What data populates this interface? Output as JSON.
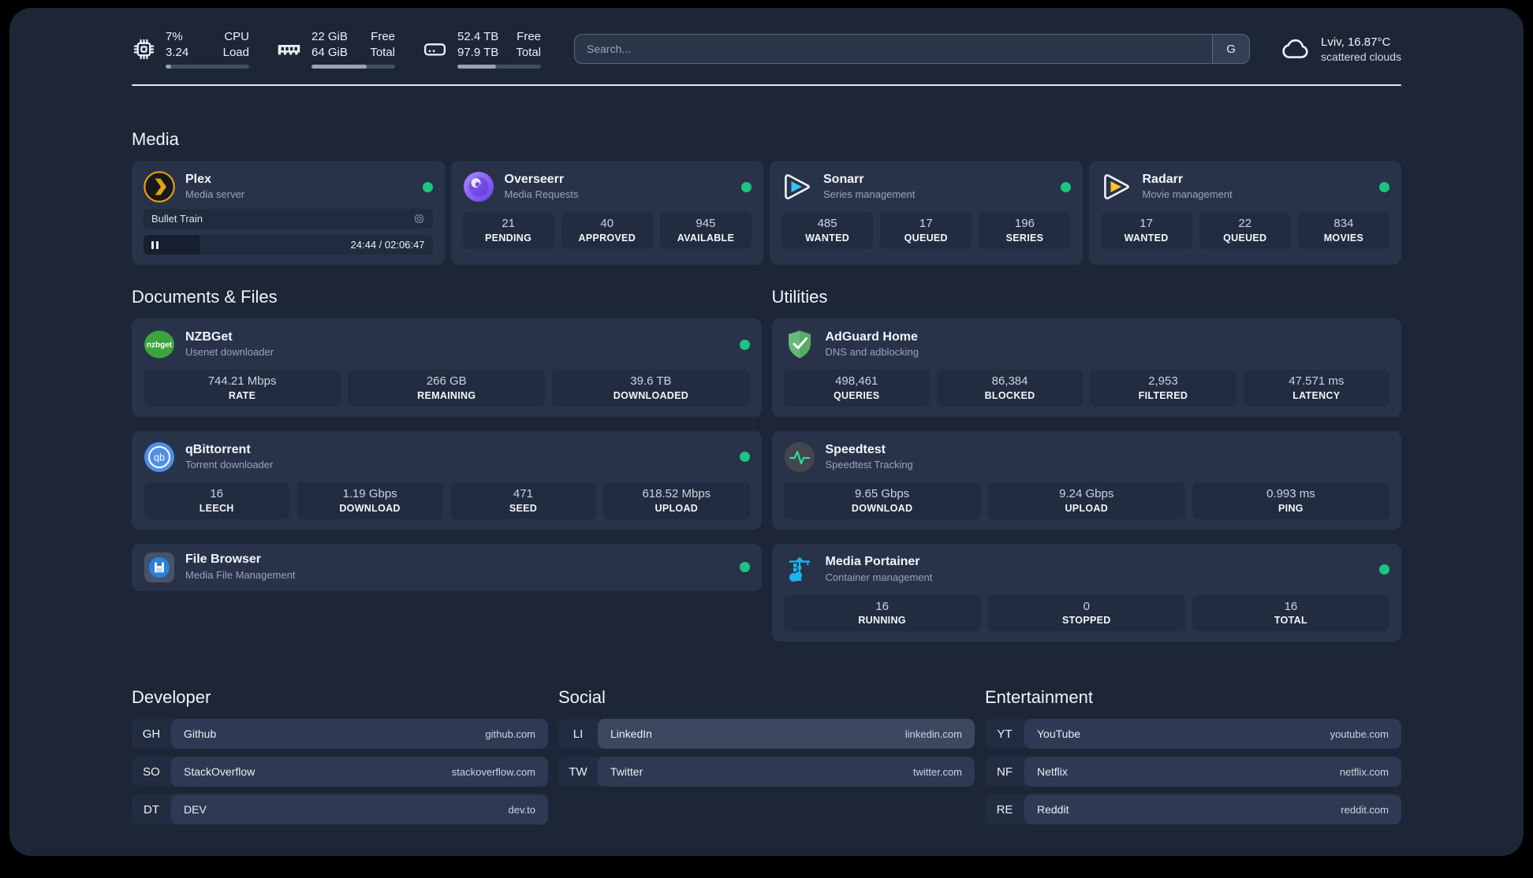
{
  "colors": {
    "page_bg": "#000000",
    "panel_bg": "#1d2636",
    "card_bg": "#28334a",
    "tile_bg": "#212c40",
    "status_online": "#1cc57e",
    "plex_orange": "#e5a00d",
    "sonarr_blue": "#32c5f4",
    "radarr_yellow": "#ffc230",
    "portainer_blue": "#16b8f0",
    "adguard_green": "#68b978",
    "speedtest_green": "#2fd8a2"
  },
  "topbar": {
    "cpu": {
      "icon": "cpu-chip-icon",
      "value_lines": [
        "7%",
        "3.24"
      ],
      "label_lines": [
        "CPU",
        "Load"
      ],
      "progress_pct": 7
    },
    "memory": {
      "icon": "ram-icon",
      "value_lines": [
        "22 GiB",
        "64 GiB"
      ],
      "label_lines": [
        "Free",
        "Total"
      ],
      "progress_pct": 66
    },
    "disk": {
      "icon": "hard-drive-icon",
      "value_lines": [
        "52.4 TB",
        "97.9 TB"
      ],
      "label_lines": [
        "Free",
        "Total"
      ],
      "progress_pct": 46
    },
    "search": {
      "placeholder": "Search...",
      "engine_button": "G"
    },
    "weather": {
      "icon": "cloud-icon",
      "location_temperature": "Lviv, 16.87°C",
      "condition": "scattered clouds"
    }
  },
  "sections": {
    "media": {
      "title": "Media",
      "plex": {
        "icon": "plex-logo",
        "title": "Plex",
        "subtitle": "Media server",
        "online": true,
        "now_playing": {
          "title": "Bullet Train",
          "time": "24:44 / 02:06:47",
          "progress_pct": 19.5
        }
      },
      "overseerr": {
        "icon": "overseerr-logo",
        "title": "Overseerr",
        "subtitle": "Media Requests",
        "online": true,
        "stats": [
          {
            "value": "21",
            "label": "PENDING"
          },
          {
            "value": "40",
            "label": "APPROVED"
          },
          {
            "value": "945",
            "label": "AVAILABLE"
          }
        ]
      },
      "sonarr": {
        "icon": "sonarr-logo",
        "title": "Sonarr",
        "subtitle": "Series management",
        "online": true,
        "stats": [
          {
            "value": "485",
            "label": "WANTED"
          },
          {
            "value": "17",
            "label": "QUEUED"
          },
          {
            "value": "196",
            "label": "SERIES"
          }
        ]
      },
      "radarr": {
        "icon": "radarr-logo",
        "title": "Radarr",
        "subtitle": "Movie management",
        "online": true,
        "stats": [
          {
            "value": "17",
            "label": "WANTED"
          },
          {
            "value": "22",
            "label": "QUEUED"
          },
          {
            "value": "834",
            "label": "MOVIES"
          }
        ]
      }
    },
    "documents": {
      "title": "Documents & Files",
      "nzbget": {
        "icon": "nzbget-logo",
        "title": "NZBGet",
        "subtitle": "Usenet downloader",
        "online": true,
        "stats": [
          {
            "value": "744.21 Mbps",
            "label": "RATE"
          },
          {
            "value": "266 GB",
            "label": "REMAINING"
          },
          {
            "value": "39.6 TB",
            "label": "DOWNLOADED"
          }
        ]
      },
      "qbittorrent": {
        "icon": "qbittorrent-logo",
        "title": "qBittorrent",
        "subtitle": "Torrent downloader",
        "online": true,
        "stats": [
          {
            "value": "16",
            "label": "LEECH"
          },
          {
            "value": "1.19 Gbps",
            "label": "DOWNLOAD"
          },
          {
            "value": "471",
            "label": "SEED"
          },
          {
            "value": "618.52 Mbps",
            "label": "UPLOAD"
          }
        ]
      },
      "filebrowser": {
        "icon": "filebrowser-logo",
        "title": "File Browser",
        "subtitle": "Media File Management",
        "online": true
      }
    },
    "utilities": {
      "title": "Utilities",
      "adguard": {
        "icon": "adguard-logo",
        "title": "AdGuard Home",
        "subtitle": "DNS and adblocking",
        "stats": [
          {
            "value": "498,461",
            "label": "QUERIES"
          },
          {
            "value": "86,384",
            "label": "BLOCKED"
          },
          {
            "value": "2,953",
            "label": "FILTERED"
          },
          {
            "value": "47.571 ms",
            "label": "LATENCY"
          }
        ]
      },
      "speedtest": {
        "icon": "speedtest-logo",
        "title": "Speedtest",
        "subtitle": "Speedtest Tracking",
        "stats": [
          {
            "value": "9.65 Gbps",
            "label": "DOWNLOAD"
          },
          {
            "value": "9.24 Gbps",
            "label": "UPLOAD"
          },
          {
            "value": "0.993 ms",
            "label": "PING"
          }
        ]
      },
      "portainer": {
        "icon": "portainer-logo",
        "title": "Media Portainer",
        "subtitle": "Container management",
        "online": true,
        "stats": [
          {
            "value": "16",
            "label": "RUNNING"
          },
          {
            "value": "0",
            "label": "STOPPED"
          },
          {
            "value": "16",
            "label": "TOTAL"
          }
        ]
      }
    },
    "bookmarks": [
      {
        "title": "Developer",
        "items": [
          {
            "abbr": "GH",
            "name": "Github",
            "url": "github.com"
          },
          {
            "abbr": "SO",
            "name": "StackOverflow",
            "url": "stackoverflow.com"
          },
          {
            "abbr": "DT",
            "name": "DEV",
            "url": "dev.to"
          }
        ]
      },
      {
        "title": "Social",
        "items": [
          {
            "abbr": "LI",
            "name": "LinkedIn",
            "url": "linkedin.com",
            "highlight": true
          },
          {
            "abbr": "TW",
            "name": "Twitter",
            "url": "twitter.com"
          }
        ]
      },
      {
        "title": "Entertainment",
        "items": [
          {
            "abbr": "YT",
            "name": "YouTube",
            "url": "youtube.com"
          },
          {
            "abbr": "NF",
            "name": "Netflix",
            "url": "netflix.com"
          },
          {
            "abbr": "RE",
            "name": "Reddit",
            "url": "reddit.com"
          }
        ]
      }
    ]
  }
}
